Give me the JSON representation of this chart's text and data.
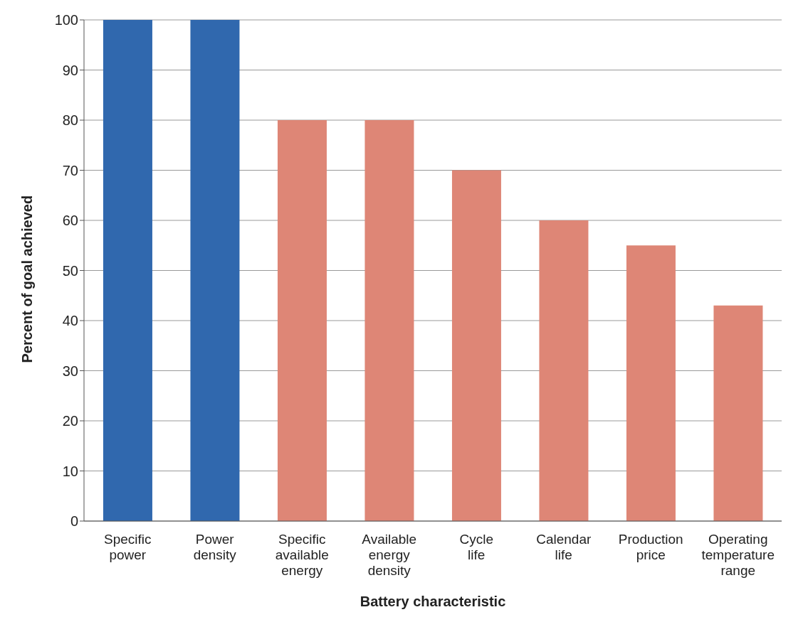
{
  "chart_data": {
    "type": "bar",
    "xlabel": "Battery characteristic",
    "ylabel": "Percent of goal achieved",
    "categories": [
      "Specific power",
      "Power density",
      "Specific available energy",
      "Available energy density",
      "Cycle life",
      "Calendar life",
      "Production price",
      "Operating temperature range"
    ],
    "values": [
      100,
      100,
      80,
      80,
      70,
      60,
      55,
      43
    ],
    "colors": [
      "#3068ae",
      "#3068ae",
      "#de8676",
      "#de8676",
      "#de8676",
      "#de8676",
      "#de8676",
      "#de8676"
    ],
    "ylim": [
      0,
      100
    ],
    "yticks": [
      0,
      10,
      20,
      30,
      40,
      50,
      60,
      70,
      80,
      90,
      100
    ],
    "grid": "y"
  }
}
